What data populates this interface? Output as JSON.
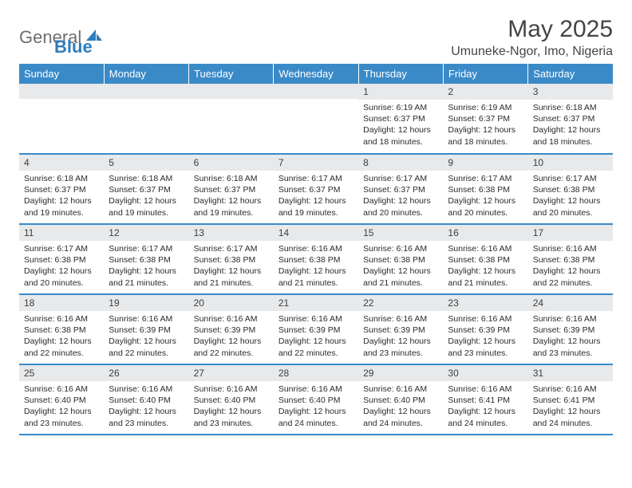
{
  "brand": {
    "general": "General",
    "blue": "Blue"
  },
  "title": "May 2025",
  "location": "Umuneke-Ngor, Imo, Nigeria",
  "colors": {
    "header_bg": "#3a8ac8",
    "border": "#3a8ac8",
    "daybar_bg": "#e7e9eb"
  },
  "weekdays": [
    "Sunday",
    "Monday",
    "Tuesday",
    "Wednesday",
    "Thursday",
    "Friday",
    "Saturday"
  ],
  "weeks": [
    [
      {
        "n": "",
        "sr": "",
        "ss": "",
        "d1": "",
        "d2": ""
      },
      {
        "n": "",
        "sr": "",
        "ss": "",
        "d1": "",
        "d2": ""
      },
      {
        "n": "",
        "sr": "",
        "ss": "",
        "d1": "",
        "d2": ""
      },
      {
        "n": "",
        "sr": "",
        "ss": "",
        "d1": "",
        "d2": ""
      },
      {
        "n": "1",
        "sr": "Sunrise: 6:19 AM",
        "ss": "Sunset: 6:37 PM",
        "d1": "Daylight: 12 hours",
        "d2": "and 18 minutes."
      },
      {
        "n": "2",
        "sr": "Sunrise: 6:19 AM",
        "ss": "Sunset: 6:37 PM",
        "d1": "Daylight: 12 hours",
        "d2": "and 18 minutes."
      },
      {
        "n": "3",
        "sr": "Sunrise: 6:18 AM",
        "ss": "Sunset: 6:37 PM",
        "d1": "Daylight: 12 hours",
        "d2": "and 18 minutes."
      }
    ],
    [
      {
        "n": "4",
        "sr": "Sunrise: 6:18 AM",
        "ss": "Sunset: 6:37 PM",
        "d1": "Daylight: 12 hours",
        "d2": "and 19 minutes."
      },
      {
        "n": "5",
        "sr": "Sunrise: 6:18 AM",
        "ss": "Sunset: 6:37 PM",
        "d1": "Daylight: 12 hours",
        "d2": "and 19 minutes."
      },
      {
        "n": "6",
        "sr": "Sunrise: 6:18 AM",
        "ss": "Sunset: 6:37 PM",
        "d1": "Daylight: 12 hours",
        "d2": "and 19 minutes."
      },
      {
        "n": "7",
        "sr": "Sunrise: 6:17 AM",
        "ss": "Sunset: 6:37 PM",
        "d1": "Daylight: 12 hours",
        "d2": "and 19 minutes."
      },
      {
        "n": "8",
        "sr": "Sunrise: 6:17 AM",
        "ss": "Sunset: 6:37 PM",
        "d1": "Daylight: 12 hours",
        "d2": "and 20 minutes."
      },
      {
        "n": "9",
        "sr": "Sunrise: 6:17 AM",
        "ss": "Sunset: 6:38 PM",
        "d1": "Daylight: 12 hours",
        "d2": "and 20 minutes."
      },
      {
        "n": "10",
        "sr": "Sunrise: 6:17 AM",
        "ss": "Sunset: 6:38 PM",
        "d1": "Daylight: 12 hours",
        "d2": "and 20 minutes."
      }
    ],
    [
      {
        "n": "11",
        "sr": "Sunrise: 6:17 AM",
        "ss": "Sunset: 6:38 PM",
        "d1": "Daylight: 12 hours",
        "d2": "and 20 minutes."
      },
      {
        "n": "12",
        "sr": "Sunrise: 6:17 AM",
        "ss": "Sunset: 6:38 PM",
        "d1": "Daylight: 12 hours",
        "d2": "and 21 minutes."
      },
      {
        "n": "13",
        "sr": "Sunrise: 6:17 AM",
        "ss": "Sunset: 6:38 PM",
        "d1": "Daylight: 12 hours",
        "d2": "and 21 minutes."
      },
      {
        "n": "14",
        "sr": "Sunrise: 6:16 AM",
        "ss": "Sunset: 6:38 PM",
        "d1": "Daylight: 12 hours",
        "d2": "and 21 minutes."
      },
      {
        "n": "15",
        "sr": "Sunrise: 6:16 AM",
        "ss": "Sunset: 6:38 PM",
        "d1": "Daylight: 12 hours",
        "d2": "and 21 minutes."
      },
      {
        "n": "16",
        "sr": "Sunrise: 6:16 AM",
        "ss": "Sunset: 6:38 PM",
        "d1": "Daylight: 12 hours",
        "d2": "and 21 minutes."
      },
      {
        "n": "17",
        "sr": "Sunrise: 6:16 AM",
        "ss": "Sunset: 6:38 PM",
        "d1": "Daylight: 12 hours",
        "d2": "and 22 minutes."
      }
    ],
    [
      {
        "n": "18",
        "sr": "Sunrise: 6:16 AM",
        "ss": "Sunset: 6:38 PM",
        "d1": "Daylight: 12 hours",
        "d2": "and 22 minutes."
      },
      {
        "n": "19",
        "sr": "Sunrise: 6:16 AM",
        "ss": "Sunset: 6:39 PM",
        "d1": "Daylight: 12 hours",
        "d2": "and 22 minutes."
      },
      {
        "n": "20",
        "sr": "Sunrise: 6:16 AM",
        "ss": "Sunset: 6:39 PM",
        "d1": "Daylight: 12 hours",
        "d2": "and 22 minutes."
      },
      {
        "n": "21",
        "sr": "Sunrise: 6:16 AM",
        "ss": "Sunset: 6:39 PM",
        "d1": "Daylight: 12 hours",
        "d2": "and 22 minutes."
      },
      {
        "n": "22",
        "sr": "Sunrise: 6:16 AM",
        "ss": "Sunset: 6:39 PM",
        "d1": "Daylight: 12 hours",
        "d2": "and 23 minutes."
      },
      {
        "n": "23",
        "sr": "Sunrise: 6:16 AM",
        "ss": "Sunset: 6:39 PM",
        "d1": "Daylight: 12 hours",
        "d2": "and 23 minutes."
      },
      {
        "n": "24",
        "sr": "Sunrise: 6:16 AM",
        "ss": "Sunset: 6:39 PM",
        "d1": "Daylight: 12 hours",
        "d2": "and 23 minutes."
      }
    ],
    [
      {
        "n": "25",
        "sr": "Sunrise: 6:16 AM",
        "ss": "Sunset: 6:40 PM",
        "d1": "Daylight: 12 hours",
        "d2": "and 23 minutes."
      },
      {
        "n": "26",
        "sr": "Sunrise: 6:16 AM",
        "ss": "Sunset: 6:40 PM",
        "d1": "Daylight: 12 hours",
        "d2": "and 23 minutes."
      },
      {
        "n": "27",
        "sr": "Sunrise: 6:16 AM",
        "ss": "Sunset: 6:40 PM",
        "d1": "Daylight: 12 hours",
        "d2": "and 23 minutes."
      },
      {
        "n": "28",
        "sr": "Sunrise: 6:16 AM",
        "ss": "Sunset: 6:40 PM",
        "d1": "Daylight: 12 hours",
        "d2": "and 24 minutes."
      },
      {
        "n": "29",
        "sr": "Sunrise: 6:16 AM",
        "ss": "Sunset: 6:40 PM",
        "d1": "Daylight: 12 hours",
        "d2": "and 24 minutes."
      },
      {
        "n": "30",
        "sr": "Sunrise: 6:16 AM",
        "ss": "Sunset: 6:41 PM",
        "d1": "Daylight: 12 hours",
        "d2": "and 24 minutes."
      },
      {
        "n": "31",
        "sr": "Sunrise: 6:16 AM",
        "ss": "Sunset: 6:41 PM",
        "d1": "Daylight: 12 hours",
        "d2": "and 24 minutes."
      }
    ]
  ]
}
